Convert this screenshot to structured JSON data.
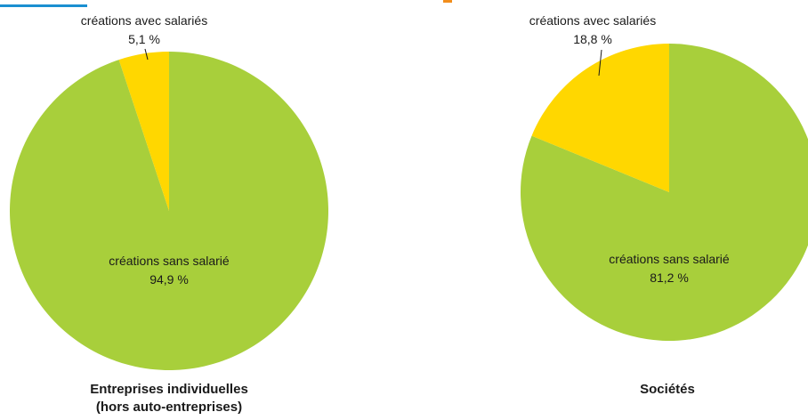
{
  "chart_data": [
    {
      "type": "pie",
      "title": "Entreprises individuelles\n(hors auto-entreprises)",
      "colors": {
        "sans": "#a8cf3b",
        "avec": "#ffd700"
      },
      "slices": [
        {
          "label": "créations avec salariés",
          "value": 5.1,
          "value_label": "5,1 %"
        },
        {
          "label": "créations sans salarié",
          "value": 94.9,
          "value_label": "94,9 %"
        }
      ]
    },
    {
      "type": "pie",
      "title": "Sociétés",
      "colors": {
        "sans": "#a8cf3b",
        "avec": "#ffd700"
      },
      "slices": [
        {
          "label": "créations avec salariés",
          "value": 18.8,
          "value_label": "18,8 %"
        },
        {
          "label": "créations sans salarié",
          "value": 81.2,
          "value_label": "81,2 %"
        }
      ]
    }
  ]
}
